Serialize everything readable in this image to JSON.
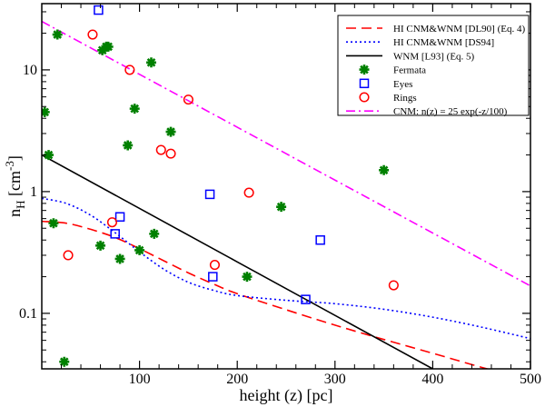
{
  "chart_data": {
    "type": "scatter",
    "xlabel": "height (z) [pc]",
    "ylabel": {
      "base": "n",
      "sub": "H",
      "unit_open": " [cm",
      "sup": "-3",
      "unit_close": "]"
    },
    "xlim": [
      0,
      500
    ],
    "ylim": [
      0.035,
      35
    ],
    "yscale": "log",
    "x_ticks": [
      100,
      200,
      300,
      400,
      500
    ],
    "y_ticks": [
      {
        "value": 0.1,
        "label": "0.1"
      },
      {
        "value": 1,
        "label": "1"
      },
      {
        "value": 10,
        "label": "10"
      }
    ],
    "legend_position": "top-right",
    "series": [
      {
        "name": "HI CNM&WNM [DL90] (Eq. 4)",
        "kind": "line",
        "style": "dashed",
        "color": "#ff0000",
        "x": [
          0,
          25,
          50,
          75,
          100,
          125,
          150,
          175,
          200,
          250,
          300,
          350,
          400,
          450,
          500
        ],
        "y": [
          0.57,
          0.55,
          0.49,
          0.42,
          0.34,
          0.27,
          0.215,
          0.175,
          0.145,
          0.107,
          0.08,
          0.061,
          0.047,
          0.036,
          0.028
        ]
      },
      {
        "name": "HI CNM&WNM [DS94]",
        "kind": "line",
        "style": "dotted",
        "color": "#0000ff",
        "x": [
          0,
          25,
          50,
          75,
          100,
          125,
          150,
          175,
          200,
          250,
          300,
          350,
          400,
          450,
          500
        ],
        "y": [
          0.88,
          0.8,
          0.64,
          0.46,
          0.32,
          0.23,
          0.18,
          0.155,
          0.14,
          0.128,
          0.12,
          0.108,
          0.093,
          0.077,
          0.062
        ]
      },
      {
        "name": "WNM [L93] (Eq. 5)",
        "kind": "line",
        "style": "solid",
        "color": "#000000",
        "x": [
          0,
          400
        ],
        "y": [
          2.0,
          0.035
        ]
      },
      {
        "name": "Fermata",
        "kind": "scatter",
        "marker": "star",
        "color": "#008000",
        "x": [
          3,
          7,
          12,
          16,
          23,
          60,
          62,
          66,
          68,
          80,
          88,
          95,
          100,
          112,
          115,
          132,
          210,
          245,
          350
        ],
        "y": [
          4.5,
          2.0,
          0.55,
          19.5,
          0.04,
          0.36,
          14.5,
          15.5,
          15.5,
          0.28,
          2.4,
          4.8,
          0.33,
          11.5,
          0.45,
          3.1,
          0.2,
          0.75,
          1.5
        ]
      },
      {
        "name": "Eyes",
        "kind": "scatter",
        "marker": "square",
        "color": "#0000ff",
        "x": [
          58,
          75,
          80,
          172,
          175,
          270,
          285
        ],
        "y": [
          31,
          0.45,
          0.62,
          0.95,
          0.2,
          0.13,
          0.4
        ]
      },
      {
        "name": "Rings",
        "kind": "scatter",
        "marker": "circle",
        "color": "#ff0000",
        "x": [
          27,
          52,
          72,
          90,
          122,
          132,
          150,
          177,
          212,
          360
        ],
        "y": [
          0.3,
          19.5,
          0.56,
          10,
          2.2,
          2.05,
          5.7,
          0.25,
          0.98,
          0.17
        ]
      },
      {
        "name": "CNM: n(z) = 25 exp(-z/100)",
        "kind": "line",
        "style": "dashdot",
        "color": "#ff00ff",
        "x": [
          0,
          500
        ],
        "y": [
          25,
          0.168
        ]
      }
    ]
  }
}
